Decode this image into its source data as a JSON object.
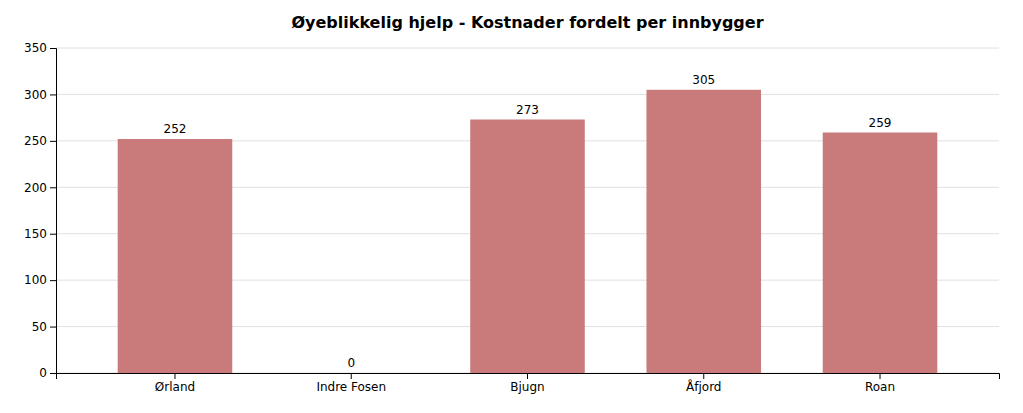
{
  "chart_data": {
    "type": "bar",
    "title": "Øyeblikkelig hjelp  - Kostnader fordelt per innbygger",
    "categories": [
      "Ørland",
      "Indre Fosen",
      "Bjugn",
      "Åfjord",
      "Roan"
    ],
    "values": [
      252,
      0,
      273,
      305,
      259
    ],
    "color": "#c97b7b",
    "ylim": [
      0,
      350
    ],
    "yticks": [
      0,
      50,
      100,
      150,
      200,
      250,
      300,
      350
    ],
    "grid": true,
    "data_labels": true
  }
}
